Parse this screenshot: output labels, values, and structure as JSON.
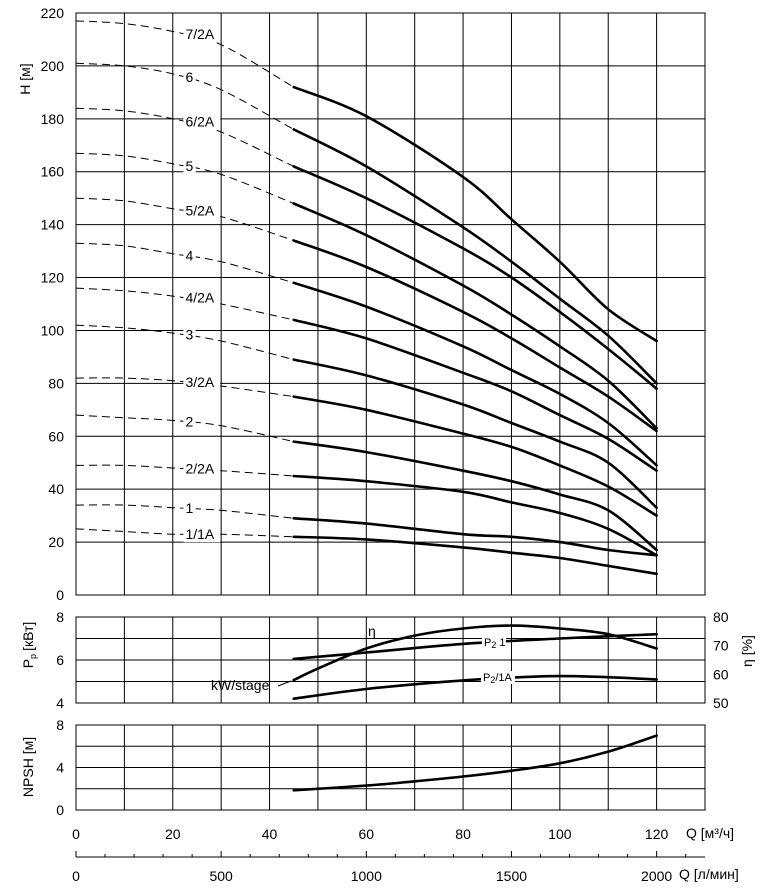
{
  "chart_data": [
    {
      "panel": "head",
      "type": "line",
      "ylabel": "H [м]",
      "xlim": [
        0,
        130
      ],
      "ylim": [
        0,
        220
      ],
      "x_ticks": [
        0,
        20,
        40,
        60,
        80,
        100,
        120
      ],
      "y_ticks": [
        0,
        20,
        40,
        60,
        80,
        100,
        120,
        140,
        160,
        180,
        200,
        220
      ],
      "grid": true,
      "series": [
        {
          "name": "7/2A",
          "dashed": [
            [
              0,
              217
            ],
            [
              10,
              216
            ],
            [
              20,
              213
            ],
            [
              30,
              208
            ],
            [
              45,
              192
            ]
          ],
          "solid": [
            [
              45,
              192
            ],
            [
              60,
              181
            ],
            [
              80,
              158
            ],
            [
              90,
              142
            ],
            [
              100,
              126
            ],
            [
              110,
              108
            ],
            [
              120,
              96
            ]
          ]
        },
        {
          "name": "6",
          "dashed": [
            [
              0,
              201
            ],
            [
              10,
              200
            ],
            [
              20,
              197
            ],
            [
              30,
              191
            ],
            [
              45,
              176
            ]
          ],
          "solid": [
            [
              45,
              176
            ],
            [
              60,
              162
            ],
            [
              80,
              139
            ],
            [
              90,
              126
            ],
            [
              100,
              112
            ],
            [
              110,
              98
            ],
            [
              120,
              80
            ]
          ]
        },
        {
          "name": "6/2A",
          "dashed": [
            [
              0,
              184
            ],
            [
              10,
              183
            ],
            [
              20,
              180
            ],
            [
              30,
              175
            ],
            [
              45,
              162
            ]
          ],
          "solid": [
            [
              45,
              162
            ],
            [
              60,
              150
            ],
            [
              80,
              131
            ],
            [
              90,
              120
            ],
            [
              100,
              107
            ],
            [
              110,
              93
            ],
            [
              120,
              78
            ]
          ]
        },
        {
          "name": "5",
          "dashed": [
            [
              0,
              167
            ],
            [
              10,
              166
            ],
            [
              20,
              163
            ],
            [
              30,
              159
            ],
            [
              45,
              148
            ]
          ],
          "solid": [
            [
              45,
              148
            ],
            [
              60,
              136
            ],
            [
              80,
              117
            ],
            [
              90,
              106
            ],
            [
              100,
              94
            ],
            [
              110,
              81
            ],
            [
              120,
              63
            ]
          ]
        },
        {
          "name": "5/2A",
          "dashed": [
            [
              0,
              150
            ],
            [
              10,
              149
            ],
            [
              20,
              146
            ],
            [
              30,
              143
            ],
            [
              45,
              134
            ]
          ],
          "solid": [
            [
              45,
              134
            ],
            [
              60,
              124
            ],
            [
              80,
              107
            ],
            [
              90,
              97
            ],
            [
              100,
              86
            ],
            [
              110,
              75
            ],
            [
              120,
              62
            ]
          ]
        },
        {
          "name": "4",
          "dashed": [
            [
              0,
              133
            ],
            [
              10,
              132
            ],
            [
              20,
              129
            ],
            [
              30,
              126
            ],
            [
              45,
              118
            ]
          ],
          "solid": [
            [
              45,
              118
            ],
            [
              60,
              109
            ],
            [
              80,
              94
            ],
            [
              90,
              85
            ],
            [
              100,
              76
            ],
            [
              110,
              65
            ],
            [
              120,
              49
            ]
          ]
        },
        {
          "name": "4/2A",
          "dashed": [
            [
              0,
              116
            ],
            [
              10,
              115
            ],
            [
              20,
              113
            ],
            [
              30,
              110
            ],
            [
              45,
              104
            ]
          ],
          "solid": [
            [
              45,
              104
            ],
            [
              60,
              97
            ],
            [
              80,
              84
            ],
            [
              90,
              77
            ],
            [
              100,
              68
            ],
            [
              110,
              59
            ],
            [
              120,
              47
            ]
          ]
        },
        {
          "name": "3",
          "dashed": [
            [
              0,
              102
            ],
            [
              10,
              101
            ],
            [
              20,
              99
            ],
            [
              30,
              96
            ],
            [
              45,
              89
            ]
          ],
          "solid": [
            [
              45,
              89
            ],
            [
              60,
              83
            ],
            [
              80,
              72
            ],
            [
              90,
              65
            ],
            [
              100,
              58
            ],
            [
              110,
              50
            ],
            [
              120,
              33
            ]
          ]
        },
        {
          "name": "3/2A",
          "dashed": [
            [
              0,
              82
            ],
            [
              10,
              82
            ],
            [
              20,
              81
            ],
            [
              30,
              79
            ],
            [
              45,
              75
            ]
          ],
          "solid": [
            [
              45,
              75
            ],
            [
              60,
              70
            ],
            [
              80,
              61
            ],
            [
              90,
              56
            ],
            [
              100,
              49
            ],
            [
              110,
              41
            ],
            [
              120,
              30
            ]
          ]
        },
        {
          "name": "2",
          "dashed": [
            [
              0,
              68
            ],
            [
              10,
              67
            ],
            [
              20,
              66
            ],
            [
              30,
              64
            ],
            [
              45,
              58
            ]
          ],
          "solid": [
            [
              45,
              58
            ],
            [
              60,
              54
            ],
            [
              80,
              47
            ],
            [
              90,
              43
            ],
            [
              100,
              38
            ],
            [
              110,
              32
            ],
            [
              120,
              17
            ]
          ]
        },
        {
          "name": "2/2A",
          "dashed": [
            [
              0,
              49
            ],
            [
              10,
              49
            ],
            [
              20,
              48
            ],
            [
              30,
              47
            ],
            [
              45,
              45
            ]
          ],
          "solid": [
            [
              45,
              45
            ],
            [
              60,
              43
            ],
            [
              80,
              39
            ],
            [
              90,
              35
            ],
            [
              100,
              31
            ],
            [
              110,
              25
            ],
            [
              120,
              15
            ]
          ]
        },
        {
          "name": "1",
          "dashed": [
            [
              0,
              34
            ],
            [
              10,
              34
            ],
            [
              20,
              33
            ],
            [
              30,
              32
            ],
            [
              45,
              29
            ]
          ],
          "solid": [
            [
              45,
              29
            ],
            [
              60,
              27
            ],
            [
              80,
              23
            ],
            [
              90,
              22
            ],
            [
              100,
              20
            ],
            [
              110,
              17
            ],
            [
              120,
              15
            ]
          ]
        },
        {
          "name": "1/1A",
          "dashed": [
            [
              0,
              25
            ],
            [
              10,
              24
            ],
            [
              20,
              23
            ],
            [
              30,
              23
            ],
            [
              45,
              22
            ]
          ],
          "solid": [
            [
              45,
              22
            ],
            [
              60,
              21
            ],
            [
              80,
              18
            ],
            [
              90,
              16
            ],
            [
              100,
              14
            ],
            [
              110,
              11
            ],
            [
              120,
              8
            ]
          ]
        }
      ],
      "curve_labels": [
        {
          "text": "7/2A",
          "series": "7/2A"
        },
        {
          "text": "6",
          "series": "6"
        },
        {
          "text": "6/2A",
          "series": "6/2A"
        },
        {
          "text": "5",
          "series": "5"
        },
        {
          "text": "5/2A",
          "series": "5/2A"
        },
        {
          "text": "4",
          "series": "4"
        },
        {
          "text": "4/2A",
          "series": "4/2A"
        },
        {
          "text": "3",
          "series": "3"
        },
        {
          "text": "3/2A",
          "series": "3/2A"
        },
        {
          "text": "2",
          "series": "2"
        },
        {
          "text": "2/2A",
          "series": "2/2A"
        },
        {
          "text": "1",
          "series": "1"
        },
        {
          "text": "1/1A",
          "series": "1/1A"
        }
      ]
    },
    {
      "panel": "power",
      "type": "line",
      "ylabel": "P",
      "ylabel_sub": "p",
      "ylabel_unit": "[кВт]",
      "ylabel_right": "η [%]",
      "xlim": [
        0,
        130
      ],
      "ylim": [
        4,
        8
      ],
      "ylim_right": [
        50,
        80
      ],
      "y_ticks": [
        4,
        6,
        8
      ],
      "y_ticks_right": [
        50,
        60,
        70,
        80
      ],
      "grid": true,
      "series": [
        {
          "name": "η",
          "axis": "right",
          "points": [
            [
              45,
              58
            ],
            [
              50,
              62
            ],
            [
              60,
              69
            ],
            [
              70,
              73.5
            ],
            [
              80,
              76
            ],
            [
              90,
              77
            ],
            [
              100,
              76
            ],
            [
              110,
              74
            ],
            [
              120,
              69
            ]
          ]
        },
        {
          "name": "P₂ 1",
          "axis": "left",
          "points": [
            [
              45,
              6.05
            ],
            [
              60,
              6.35
            ],
            [
              80,
              6.75
            ],
            [
              100,
              7.0
            ],
            [
              120,
              7.2
            ]
          ]
        },
        {
          "name": "P₂ /1A",
          "axis": "left",
          "points": [
            [
              45,
              4.2
            ],
            [
              60,
              4.65
            ],
            [
              80,
              5.05
            ],
            [
              100,
              5.25
            ],
            [
              120,
              5.1
            ]
          ]
        }
      ],
      "labels": {
        "eta": "η",
        "p21": "P",
        "p21_sub": "2",
        "p21_tail": "1",
        "p21a": "P",
        "p21a_sub": "2",
        "p21a_tail": "/1A",
        "kw_stage": "kW/stage"
      }
    },
    {
      "panel": "npsh",
      "type": "line",
      "ylabel": "NPSH [м]",
      "xlim": [
        0,
        130
      ],
      "ylim": [
        0,
        8
      ],
      "y_ticks": [
        0,
        4,
        8
      ],
      "grid": true,
      "series": [
        {
          "name": "NPSH",
          "points": [
            [
              45,
              1.85
            ],
            [
              60,
              2.3
            ],
            [
              70,
              2.7
            ],
            [
              80,
              3.15
            ],
            [
              90,
              3.7
            ],
            [
              100,
              4.4
            ],
            [
              110,
              5.5
            ],
            [
              120,
              7.0
            ]
          ]
        }
      ]
    }
  ],
  "x_axis": {
    "label": "Q [м³/ч]",
    "ticks": [
      0,
      20,
      40,
      60,
      80,
      100,
      120
    ]
  },
  "x_axis_2": {
    "label": "Q [л/мин]",
    "ticks": [
      0,
      500,
      1000,
      1500,
      2000
    ],
    "factor": 16.6667
  }
}
